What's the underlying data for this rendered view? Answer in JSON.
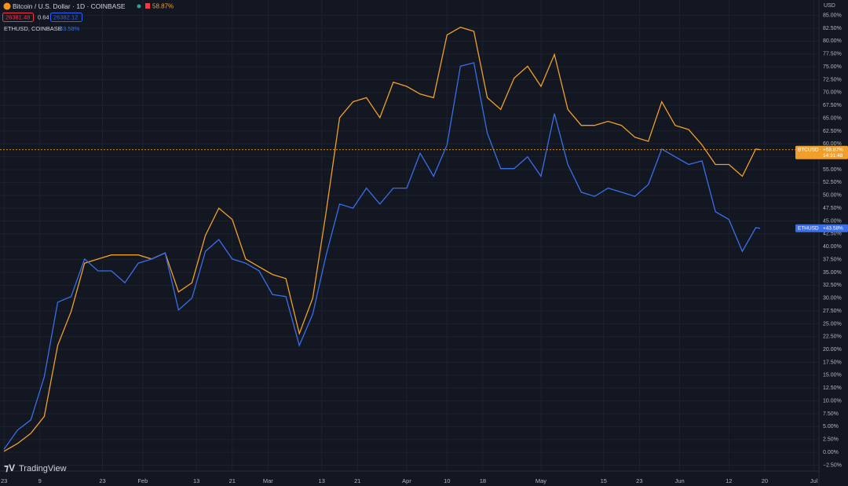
{
  "chart_data": {
    "type": "line",
    "main_symbol": "Bitcoin / U.S. Dollar · 1D · COINBASE",
    "main_change": "58.87%",
    "bid": "26381.48",
    "spread": "0.64",
    "ask": "26382.12",
    "compare_symbol": "ETHUSD, COINBASE",
    "compare_change": "43.58%",
    "currency": "USD",
    "brand": "TradingView",
    "countdown": "14:31:48",
    "grid": true,
    "x": [
      0,
      3,
      6,
      9,
      12,
      15,
      18,
      21,
      24,
      27,
      30,
      33,
      36,
      39,
      42,
      45,
      48,
      51,
      54,
      57,
      60,
      63,
      66,
      69,
      72,
      75,
      78,
      81,
      84,
      87,
      90,
      93,
      96,
      99,
      102,
      105,
      108,
      111,
      114,
      117,
      120,
      123,
      126,
      129,
      132,
      135,
      138,
      141,
      144,
      147,
      150,
      153,
      156,
      159,
      162,
      165,
      168,
      169
    ],
    "series": [
      {
        "name": "BTCUSD",
        "color": "#f0a02a",
        "tag_label": "+58.87%",
        "last": 58.87,
        "values": [
          0.2,
          1.7,
          3.7,
          7.0,
          20.8,
          27.4,
          36.8,
          37.6,
          38.4,
          38.4,
          38.4,
          37.6,
          38.8,
          31.2,
          33.0,
          42.2,
          47.5,
          45.3,
          37.6,
          36.1,
          34.6,
          33.8,
          23.1,
          30.0,
          46.8,
          65.1,
          68.2,
          69.0,
          65.1,
          72.0,
          71.2,
          69.7,
          69.0,
          81.2,
          82.7,
          81.9,
          69.0,
          66.7,
          72.8,
          75.1,
          71.2,
          77.4,
          66.7,
          63.6,
          63.6,
          64.4,
          63.6,
          61.3,
          60.5,
          68.2,
          63.6,
          62.8,
          59.8,
          56.0,
          56.0,
          53.7,
          59.0,
          58.87
        ]
      },
      {
        "name": "ETHUSD",
        "color": "#3a6ee8",
        "tag_label": "+43.58%",
        "last": 43.58,
        "values": [
          0.6,
          4.3,
          6.3,
          14.7,
          29.2,
          30.3,
          37.6,
          35.3,
          35.3,
          33.0,
          36.8,
          37.6,
          38.8,
          27.7,
          30.0,
          39.1,
          41.4,
          37.6,
          36.8,
          35.3,
          30.7,
          30.3,
          20.8,
          26.9,
          38.4,
          48.3,
          47.5,
          51.4,
          48.3,
          51.4,
          51.4,
          58.2,
          53.7,
          59.8,
          75.1,
          75.8,
          62.1,
          55.2,
          55.2,
          57.5,
          53.7,
          65.9,
          56.0,
          50.6,
          49.8,
          51.4,
          50.6,
          49.8,
          52.1,
          59.0,
          57.5,
          56.0,
          56.7,
          46.8,
          45.3,
          39.1,
          43.7,
          43.58
        ]
      }
    ],
    "xlim": [
      -0.9,
      181.6
    ],
    "xticks": [
      {
        "value": 0,
        "label": "23"
      },
      {
        "value": 8,
        "label": "9"
      },
      {
        "value": 22,
        "label": "23"
      },
      {
        "value": 31,
        "label": "Feb"
      },
      {
        "value": 43,
        "label": "13"
      },
      {
        "value": 51,
        "label": "21"
      },
      {
        "value": 59,
        "label": "Mar"
      },
      {
        "value": 71,
        "label": "13"
      },
      {
        "value": 79,
        "label": "21"
      },
      {
        "value": 90,
        "label": "Apr"
      },
      {
        "value": 99,
        "label": "10"
      },
      {
        "value": 107,
        "label": "18"
      },
      {
        "value": 120,
        "label": "May"
      },
      {
        "value": 134,
        "label": "15"
      },
      {
        "value": 142,
        "label": "23"
      },
      {
        "value": 151,
        "label": "Jun"
      },
      {
        "value": 162,
        "label": "12"
      },
      {
        "value": 170,
        "label": "20"
      },
      {
        "value": 181,
        "label": "Jul"
      }
    ],
    "ylim": [
      -3.5,
      88
    ],
    "yticks": [
      {
        "value": -2.5,
        "label": "−2.50%"
      },
      {
        "value": 0,
        "label": "0.00%"
      },
      {
        "value": 2.5,
        "label": "2.50%"
      },
      {
        "value": 5,
        "label": "5.00%"
      },
      {
        "value": 7.5,
        "label": "7.50%"
      },
      {
        "value": 10,
        "label": "10.00%"
      },
      {
        "value": 12.5,
        "label": "12.50%"
      },
      {
        "value": 15,
        "label": "15.00%"
      },
      {
        "value": 17.5,
        "label": "17.50%"
      },
      {
        "value": 20,
        "label": "20.00%"
      },
      {
        "value": 22.5,
        "label": "22.50%"
      },
      {
        "value": 25,
        "label": "25.00%"
      },
      {
        "value": 27.5,
        "label": "27.50%"
      },
      {
        "value": 30,
        "label": "30.00%"
      },
      {
        "value": 32.5,
        "label": "32.50%"
      },
      {
        "value": 35,
        "label": "35.00%"
      },
      {
        "value": 37.5,
        "label": "37.50%"
      },
      {
        "value": 40,
        "label": "40.00%"
      },
      {
        "value": 42.5,
        "label": "42.50%"
      },
      {
        "value": 45,
        "label": "45.00%"
      },
      {
        "value": 47.5,
        "label": "47.50%"
      },
      {
        "value": 50,
        "label": "50.00%"
      },
      {
        "value": 52.5,
        "label": "52.50%"
      },
      {
        "value": 55,
        "label": "55.00%"
      },
      {
        "value": 57.5,
        "label": "57.50%"
      },
      {
        "value": 60,
        "label": "60.00%"
      },
      {
        "value": 62.5,
        "label": "62.50%"
      },
      {
        "value": 65,
        "label": "65.00%"
      },
      {
        "value": 67.5,
        "label": "67.50%"
      },
      {
        "value": 70,
        "label": "70.00%"
      },
      {
        "value": 72.5,
        "label": "72.50%"
      },
      {
        "value": 75,
        "label": "75.00%"
      },
      {
        "value": 77.5,
        "label": "77.50%"
      },
      {
        "value": 80,
        "label": "80.00%"
      },
      {
        "value": 82.5,
        "label": "82.50%"
      },
      {
        "value": 85,
        "label": "85.00%"
      }
    ]
  }
}
